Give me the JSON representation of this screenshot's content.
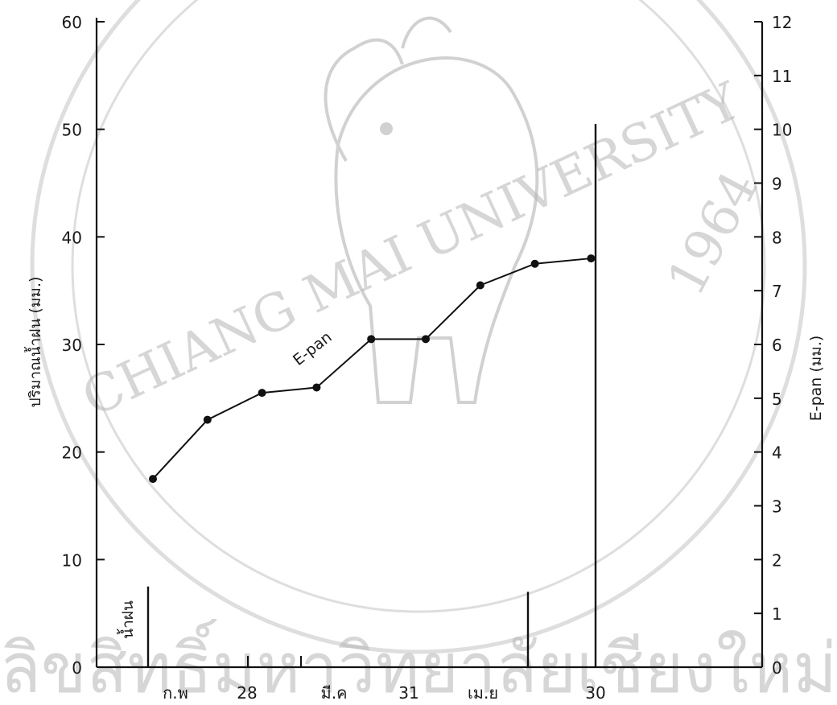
{
  "watermark": {
    "university": "CHIANG MAI UNIVERSITY",
    "year": "1964",
    "bottom_text": "ลิขสิทธิ์มหาวิทยาลัยเชียงใหม่"
  },
  "chart_data": {
    "type": "line",
    "left_axis": {
      "label": "ปริมาณน้ำฝน (มม.)",
      "ylim": [
        0,
        60
      ],
      "ticks": [
        "0",
        "10",
        "20",
        "30",
        "40",
        "50",
        "60"
      ]
    },
    "right_axis": {
      "label": "E-pan (มม.)",
      "ylim": [
        0,
        12
      ],
      "ticks": [
        "0",
        "1",
        "2",
        "3",
        "4",
        "5",
        "6",
        "7",
        "8",
        "9",
        "10",
        "11",
        "12"
      ]
    },
    "x_tick_labels": [
      "ก.พ",
      "28",
      "มี.ค",
      "31",
      "เม.ย",
      "30"
    ],
    "series": [
      {
        "name": "E-pan",
        "axis": "right",
        "points": [
          {
            "x": 1,
            "y": 3.5
          },
          {
            "x": 2,
            "y": 4.6
          },
          {
            "x": 3,
            "y": 5.1
          },
          {
            "x": 4,
            "y": 5.2
          },
          {
            "x": 5,
            "y": 6.1
          },
          {
            "x": 6,
            "y": 6.1
          },
          {
            "x": 7,
            "y": 7.1
          },
          {
            "x": 8,
            "y": 7.5
          },
          {
            "x": 9,
            "y": 7.6
          }
        ]
      },
      {
        "name": "น้ำฝน",
        "axis": "left",
        "bars": [
          {
            "x": 1,
            "y": 7.5
          },
          {
            "x": 8,
            "y": 7.0
          },
          {
            "x": 9,
            "y": 50.5
          }
        ]
      }
    ]
  }
}
